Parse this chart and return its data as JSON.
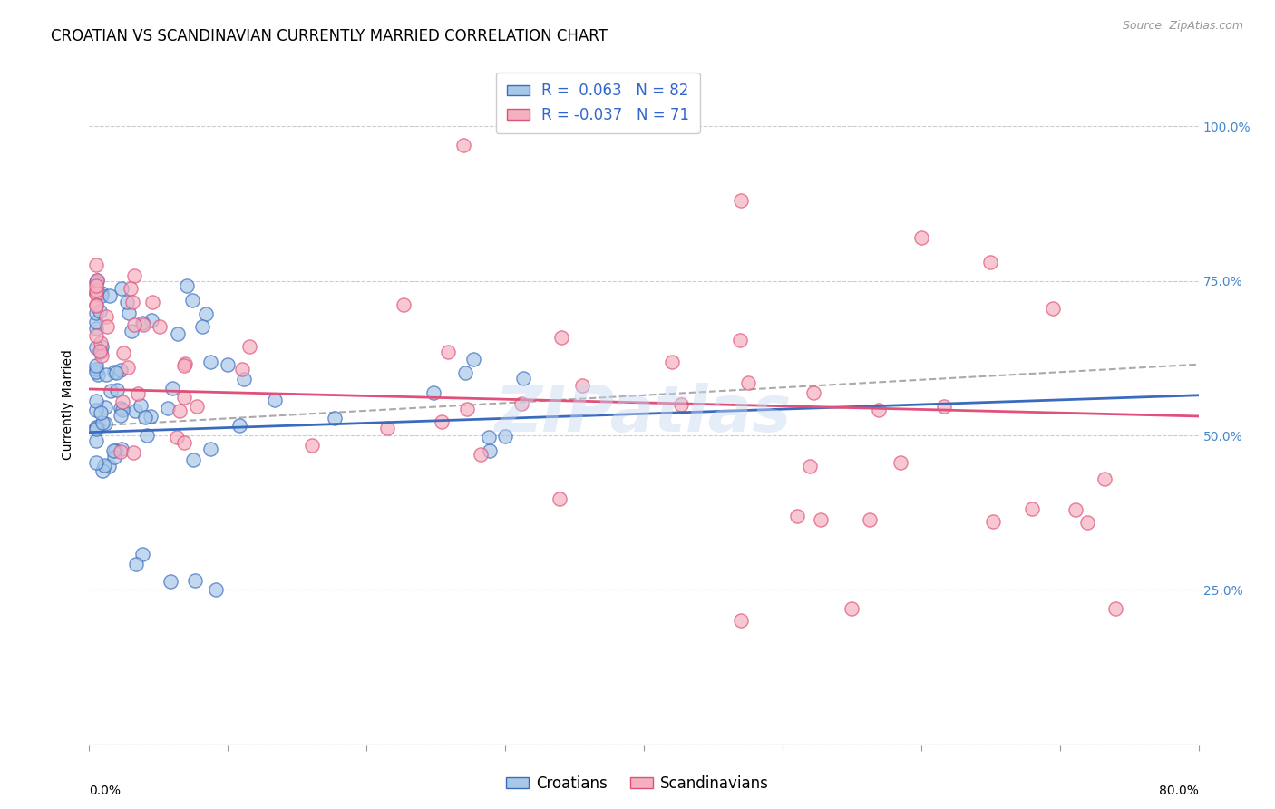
{
  "title": "CROATIAN VS SCANDINAVIAN CURRENTLY MARRIED CORRELATION CHART",
  "source": "Source: ZipAtlas.com",
  "ylabel": "Currently Married",
  "ytick_labels": [
    "",
    "25.0%",
    "50.0%",
    "75.0%",
    "100.0%"
  ],
  "ytick_positions": [
    0.0,
    0.25,
    0.5,
    0.75,
    1.0
  ],
  "xlim": [
    0.0,
    0.8
  ],
  "ylim": [
    0.0,
    1.1
  ],
  "legend_line1": "R =  0.063   N = 82",
  "legend_line2": "R = -0.037   N = 71",
  "croatian_color": "#a8c8e8",
  "scandinavian_color": "#f5b0c0",
  "trend_croatian_color": "#3a6bbf",
  "trend_scandinavian_color": "#e0507a",
  "trend_dashed_color": "#aaaaaa",
  "watermark": "ZIPatlas",
  "title_fontsize": 12,
  "axis_label_fontsize": 10,
  "tick_fontsize": 10,
  "legend_fontsize": 12,
  "scatter_size": 120,
  "scatter_alpha": 0.7,
  "scatter_linewidth": 1.0
}
